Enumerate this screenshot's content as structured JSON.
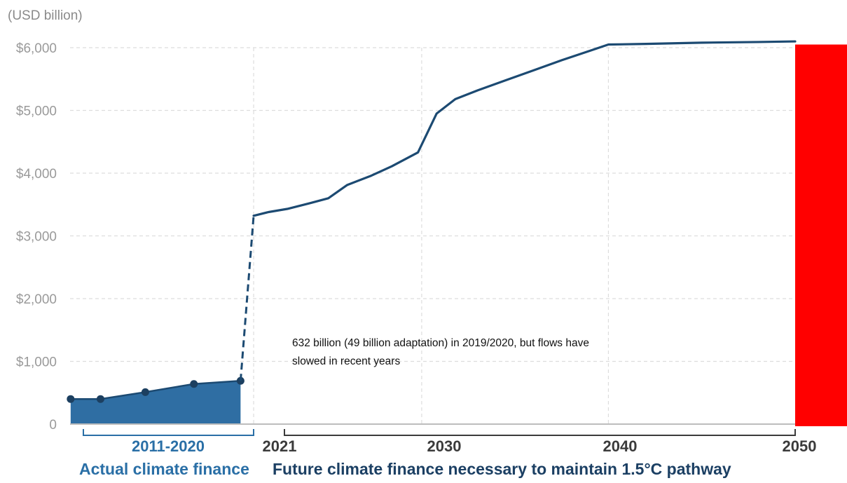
{
  "chart_data": {
    "type": "line",
    "unit_label": "(USD billion)",
    "y_ticks": [
      "$6,000",
      "$5,000",
      "$4,000",
      "$3,000",
      "$2,000",
      "$1,000",
      "0"
    ],
    "y_tick_values": [
      6000,
      5000,
      4000,
      3000,
      2000,
      1000,
      0
    ],
    "ylim": [
      0,
      6000
    ],
    "xlim": [
      2011,
      2050
    ],
    "x_ticks": [
      {
        "label": "2011-2020",
        "style": "historical"
      },
      {
        "label": "2021",
        "style": "future"
      },
      {
        "label": "2030",
        "style": "future"
      },
      {
        "label": "2040",
        "style": "future"
      },
      {
        "label": "2050",
        "style": "future"
      }
    ],
    "grid": true,
    "series": [
      {
        "kind": "area",
        "color": "#2f6ea3",
        "points": [
          {
            "x": 2011.2,
            "y": 400
          },
          {
            "x": 2012.8,
            "y": 400
          },
          {
            "x": 2015.2,
            "y": 510
          },
          {
            "x": 2017.8,
            "y": 640
          },
          {
            "x": 2020.3,
            "y": 690
          }
        ]
      },
      {
        "kind": "dashed-connector",
        "color": "#1c4a72",
        "points": [
          {
            "x": 2020.3,
            "y": 690
          },
          {
            "x": 2021.0,
            "y": 3320
          }
        ]
      },
      {
        "kind": "line",
        "color": "#1c4a72",
        "points": [
          {
            "x": 2021.0,
            "y": 3320
          },
          {
            "x": 2021.8,
            "y": 3380
          },
          {
            "x": 2022.8,
            "y": 3430
          },
          {
            "x": 2024.0,
            "y": 3520
          },
          {
            "x": 2025.0,
            "y": 3600
          },
          {
            "x": 2026.0,
            "y": 3810
          },
          {
            "x": 2027.3,
            "y": 3960
          },
          {
            "x": 2028.4,
            "y": 4110
          },
          {
            "x": 2029.8,
            "y": 4330
          },
          {
            "x": 2030.8,
            "y": 4950
          },
          {
            "x": 2031.8,
            "y": 5180
          },
          {
            "x": 2033.0,
            "y": 5320
          },
          {
            "x": 2034.5,
            "y": 5480
          },
          {
            "x": 2036.0,
            "y": 5640
          },
          {
            "x": 2037.5,
            "y": 5800
          },
          {
            "x": 2039.0,
            "y": 5950
          },
          {
            "x": 2040.0,
            "y": 6050
          },
          {
            "x": 2042.0,
            "y": 6060
          },
          {
            "x": 2045.0,
            "y": 6080
          },
          {
            "x": 2048.0,
            "y": 6090
          },
          {
            "x": 2050.0,
            "y": 6100
          }
        ]
      }
    ],
    "highlight_bar": {
      "x": 2050,
      "value": 6050,
      "color": "#ff0000"
    },
    "captions": {
      "historical": "Actual climate finance",
      "future": "Future climate finance necessary to maintain 1.5°C pathway"
    },
    "annotation": [
      "632 billion (49 billion adaptation) in 2019/2020, but flows have",
      "slowed in recent years"
    ]
  }
}
